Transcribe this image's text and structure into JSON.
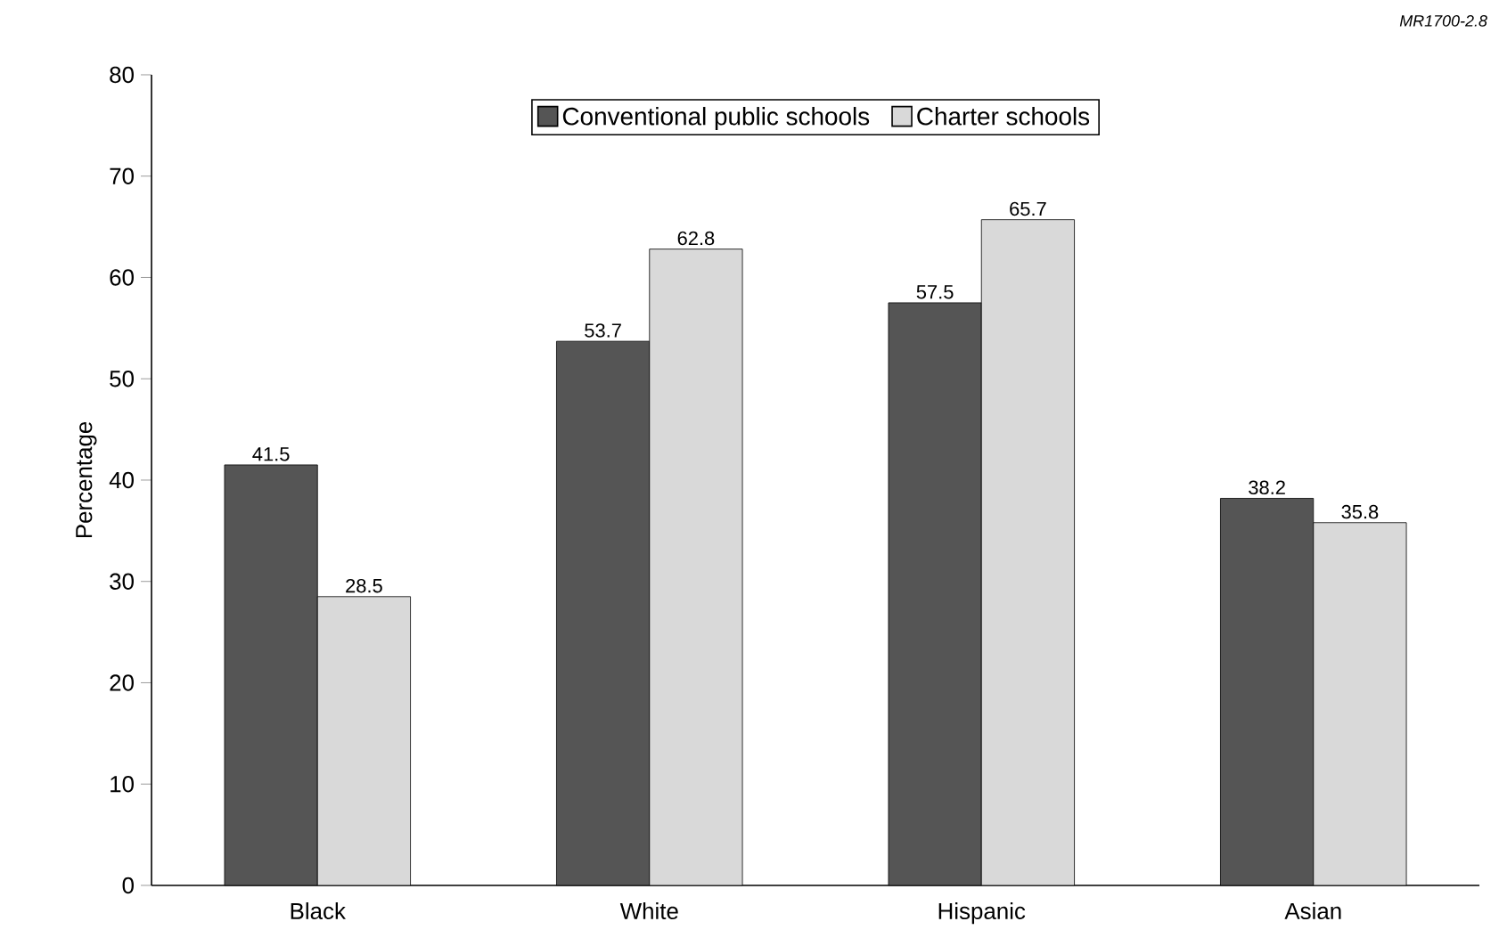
{
  "chart_data": {
    "type": "bar",
    "ylabel": "Percentage",
    "categories": [
      "Black",
      "White",
      "Hispanic",
      "Asian"
    ],
    "series": [
      {
        "name": "Conventional public schools",
        "color": "#555555",
        "values": [
          41.5,
          53.7,
          57.5,
          38.2
        ]
      },
      {
        "name": "Charter schools",
        "color": "#d9d9d9",
        "values": [
          28.5,
          62.8,
          65.7,
          35.8
        ]
      }
    ],
    "ylim": [
      0,
      80
    ],
    "yticks": [
      0,
      10,
      20,
      30,
      40,
      50,
      60,
      70,
      80
    ],
    "data_labels": true,
    "legend": "top",
    "grid": false,
    "annotations": [
      "MR1700-2.8"
    ]
  }
}
